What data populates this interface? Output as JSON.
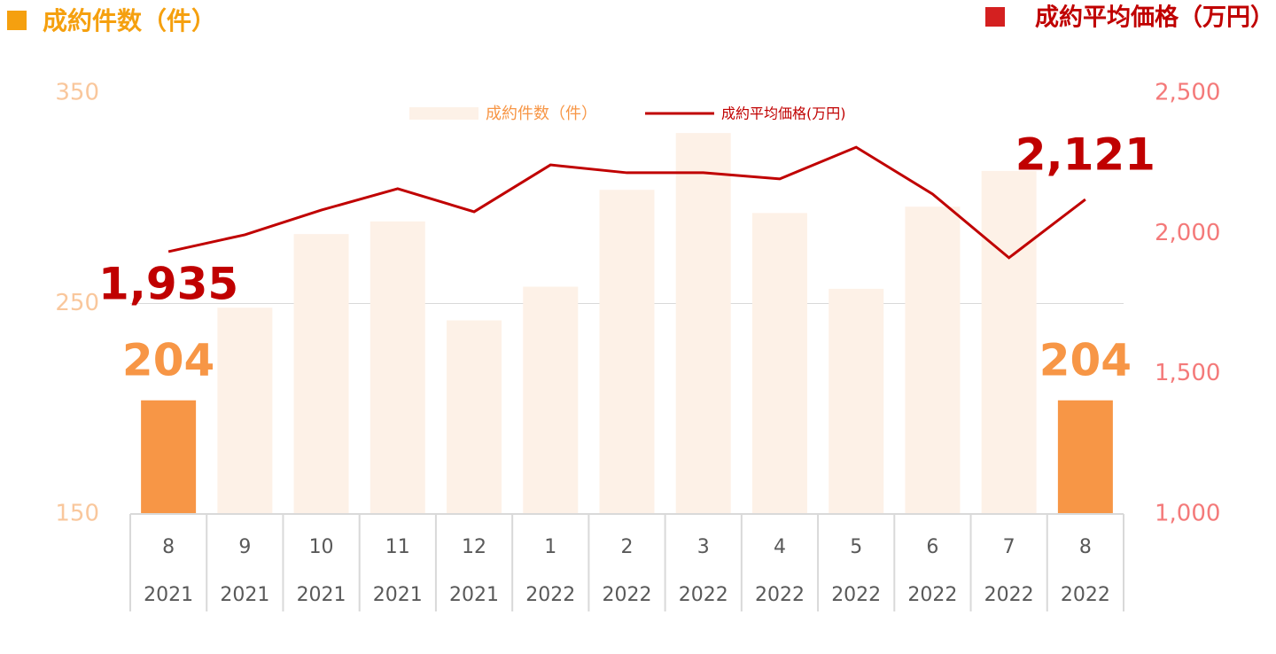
{
  "chart_data": {
    "type": "bar_line",
    "y_label": "成約件数（件）",
    "y2_label": "成約平均価格（万円）",
    "categories": [
      "8",
      "9",
      "10",
      "11",
      "12",
      "1",
      "2",
      "3",
      "4",
      "5",
      "6",
      "7",
      "8"
    ],
    "years": [
      "2021",
      "2021",
      "2021",
      "2021",
      "2021",
      "2022",
      "2022",
      "2022",
      "2022",
      "2022",
      "2022",
      "2022",
      "2022"
    ],
    "series": [
      {
        "name": "成約件数（件）",
        "type": "bar",
        "color": "#fdf1e7",
        "colors": [
          "#f79646",
          "#fdf1e7",
          "#fdf1e7",
          "#fdf1e7",
          "#fdf1e7",
          "#fdf1e7",
          "#fdf1e7",
          "#fdf1e7",
          "#fdf1e7",
          "#fdf1e7",
          "#fdf1e7",
          "#fdf1e7",
          "#f79646"
        ],
        "values": [
          204,
          248,
          283,
          289,
          242,
          258,
          304,
          331,
          293,
          257,
          296,
          313,
          204
        ],
        "value_labels": [
          "204",
          null,
          null,
          null,
          null,
          null,
          null,
          null,
          null,
          null,
          null,
          null,
          "204"
        ]
      },
      {
        "name": "成約平均価格(万円)",
        "type": "line",
        "axis": "y2",
        "color": "#c00000",
        "values": [
          1935,
          1995,
          2083,
          2159,
          2077,
          2244,
          2216,
          2216,
          2194,
          2307,
          2140,
          1913,
          2121
        ],
        "value_labels": [
          "1,935",
          null,
          null,
          null,
          null,
          null,
          null,
          null,
          null,
          null,
          null,
          null,
          "2,121"
        ]
      }
    ],
    "ylim": [
      150,
      350
    ],
    "yticks": [
      150,
      250,
      350
    ],
    "y2lim": [
      1000,
      2500
    ],
    "y2ticks": [
      {
        "value": 1000,
        "label": "1,000"
      },
      {
        "value": 1500,
        "label": "1,500"
      },
      {
        "value": 2000,
        "label": "2,000"
      },
      {
        "value": 2500,
        "label": "2,500"
      }
    ],
    "grid": true,
    "legend": "top"
  }
}
